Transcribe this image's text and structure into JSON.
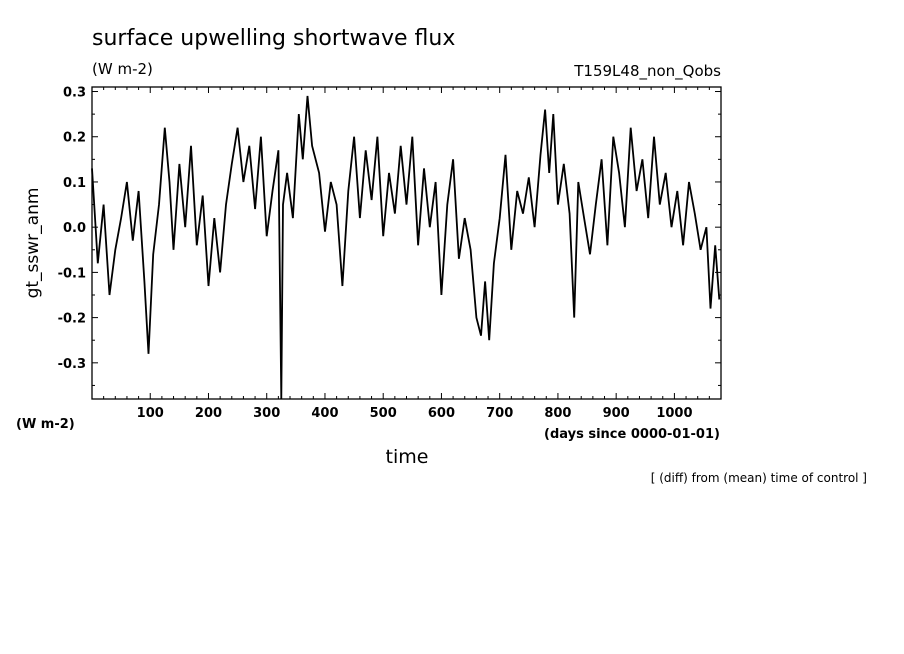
{
  "chart_data": {
    "type": "line",
    "title": "surface upwelling shortwave flux",
    "units": "(W m-2)",
    "dataset_label": "T159L48_non_Qobs",
    "ylabel": "gt_sswr_anm",
    "yunits_label": "(W m-2)",
    "xlabel": "time",
    "xunits_label": "(days since 0000-01-01)",
    "note": "[ (diff) from (mean) time of control ]",
    "xlim": [
      0,
      1080
    ],
    "ylim": [
      -0.38,
      0.31
    ],
    "xticks": [
      100,
      200,
      300,
      400,
      500,
      600,
      700,
      800,
      900,
      1000
    ],
    "yticks": [
      0.3,
      0.2,
      0.1,
      0.0,
      -0.1,
      -0.2,
      -0.3
    ],
    "ytick_labels": [
      "0.3",
      "0.2",
      "0.1",
      "0.0",
      "-0.1",
      "-0.2",
      "-0.3"
    ],
    "grid": false,
    "series": [
      {
        "color": "#000000",
        "x": [
          0,
          10,
          20,
          30,
          40,
          50,
          60,
          70,
          80,
          90,
          97,
          105,
          115,
          125,
          133,
          140,
          150,
          160,
          170,
          180,
          190,
          200,
          210,
          220,
          230,
          240,
          250,
          260,
          270,
          280,
          290,
          300,
          310,
          320,
          325,
          328,
          335,
          345,
          355,
          362,
          370,
          378,
          390,
          400,
          410,
          420,
          430,
          440,
          450,
          460,
          470,
          480,
          490,
          500,
          510,
          520,
          530,
          540,
          550,
          560,
          570,
          580,
          590,
          600,
          610,
          620,
          630,
          640,
          650,
          660,
          668,
          675,
          682,
          690,
          700,
          710,
          720,
          730,
          740,
          750,
          760,
          770,
          778,
          785,
          792,
          800,
          810,
          820,
          828,
          835,
          845,
          855,
          865,
          875,
          885,
          895,
          905,
          915,
          925,
          935,
          945,
          955,
          965,
          975,
          985,
          995,
          1005,
          1015,
          1025,
          1035,
          1045,
          1055,
          1062,
          1070,
          1077
        ],
        "y": [
          0.13,
          -0.08,
          0.05,
          -0.15,
          -0.05,
          0.02,
          0.1,
          -0.03,
          0.08,
          -0.12,
          -0.28,
          -0.06,
          0.05,
          0.22,
          0.1,
          -0.05,
          0.14,
          0.0,
          0.18,
          -0.04,
          0.07,
          -0.13,
          0.02,
          -0.1,
          0.05,
          0.14,
          0.22,
          0.1,
          0.18,
          0.04,
          0.2,
          -0.02,
          0.08,
          0.17,
          -0.38,
          0.05,
          0.12,
          0.02,
          0.25,
          0.15,
          0.29,
          0.18,
          0.12,
          -0.01,
          0.1,
          0.05,
          -0.13,
          0.08,
          0.2,
          0.02,
          0.17,
          0.06,
          0.2,
          -0.02,
          0.12,
          0.03,
          0.18,
          0.05,
          0.2,
          -0.04,
          0.13,
          0.0,
          0.1,
          -0.15,
          0.05,
          0.15,
          -0.07,
          0.02,
          -0.05,
          -0.2,
          -0.24,
          -0.12,
          -0.25,
          -0.08,
          0.02,
          0.16,
          -0.05,
          0.08,
          0.03,
          0.11,
          0.0,
          0.16,
          0.26,
          0.12,
          0.25,
          0.05,
          0.14,
          0.03,
          -0.2,
          0.1,
          0.02,
          -0.06,
          0.05,
          0.15,
          -0.04,
          0.2,
          0.12,
          0.0,
          0.22,
          0.08,
          0.15,
          0.02,
          0.2,
          0.05,
          0.12,
          0.0,
          0.08,
          -0.04,
          0.1,
          0.03,
          -0.05,
          0.0,
          -0.18,
          -0.04,
          -0.16
        ]
      }
    ]
  }
}
